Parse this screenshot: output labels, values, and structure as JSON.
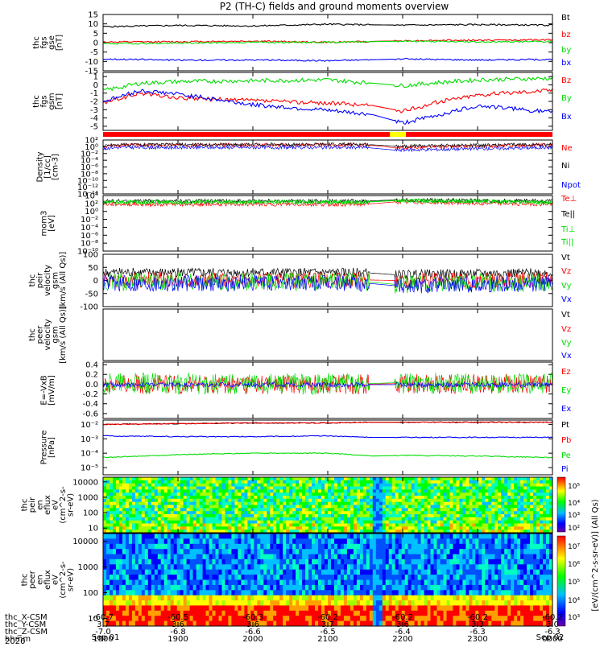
{
  "title": "P2 (TH-C) fields and ground moments overview",
  "time_axis": {
    "rows": [
      {
        "label": "thc_X-CSM",
        "values": [
          "-60.7",
          "-60.5",
          "-60.3",
          "-60.2",
          "-60.2",
          "-60.2",
          "-60.2"
        ]
      },
      {
        "label": "thc_Y-CSM",
        "values": [
          "3.7",
          "3.6",
          "3.6",
          "3.7",
          "3.6",
          "3.3",
          "3.0"
        ]
      },
      {
        "label": "thc_Z-CSM",
        "values": [
          "-7.0",
          "-6.8",
          "-6.6",
          "-6.5",
          "-6.4",
          "-6.3",
          "-6.3"
        ]
      },
      {
        "label": "hhmm",
        "values": [
          "1800",
          "1900",
          "2000",
          "2100",
          "2200",
          "2300",
          "0000"
        ]
      }
    ],
    "year": "2020",
    "date_start": "Sep 01",
    "date_end": "Sep 02"
  },
  "colorbar": {
    "label": "[eV/(cm^2-s-sr-eV)] (All Qs)",
    "upper_ticks": [
      "10⁵",
      "10⁴",
      "10³",
      "10²"
    ],
    "lower_ticks": [
      "10⁷",
      "10⁶",
      "10⁵",
      "10⁴",
      "10³"
    ]
  },
  "chart_data": [
    {
      "type": "line",
      "id": "fgs",
      "ylabel": [
        "thc",
        "fgs",
        "gse",
        "[nT]"
      ],
      "ylim": [
        -15,
        15
      ],
      "ticks": [
        "15",
        "10",
        "5",
        "0",
        "-5",
        "-10",
        "-15"
      ],
      "tick_values": [
        15,
        10,
        5,
        0,
        -5,
        -10,
        -15
      ],
      "x": [
        0,
        1,
        2,
        3,
        4,
        5,
        6
      ],
      "series": [
        {
          "name": "Bt",
          "color": "#000000",
          "values": [
            8.5,
            9.2,
            8.9,
            9.8,
            9.3,
            9.6,
            9.3
          ]
        },
        {
          "name": "bz",
          "color": "#ff0000",
          "values": [
            0.3,
            0.5,
            0.8,
            0.2,
            1.0,
            1.3,
            1.5
          ]
        },
        {
          "name": "by",
          "color": "#00dd00",
          "values": [
            -0.5,
            -0.3,
            0.2,
            0.2,
            0.8,
            0.4,
            0.6
          ]
        },
        {
          "name": "bx",
          "color": "#0000ff",
          "values": [
            -8.7,
            -9.3,
            -9.2,
            -9.6,
            -8.7,
            -9.2,
            -9.0
          ]
        }
      ]
    },
    {
      "type": "line",
      "id": "fgs_gsm",
      "ylabel": [
        "thc",
        "fgs",
        "gsm",
        "[nT]"
      ],
      "ylim": [
        -5.5,
        1.5
      ],
      "ticks": [
        "1",
        "0",
        "-1",
        "-2",
        "-3",
        "-4",
        "-5"
      ],
      "tick_values": [
        1,
        0,
        -1,
        -2,
        -3,
        -4,
        -5
      ],
      "x": [
        0,
        0.5,
        1,
        2,
        3,
        3.6,
        4,
        4.5,
        5,
        6
      ],
      "series": [
        {
          "name": "Bz",
          "color": "#ff0000",
          "values": [
            -2.2,
            -1.0,
            -1.6,
            -1.9,
            -2.2,
            -2.5,
            -3.2,
            -2.0,
            -1.2,
            -0.6
          ]
        },
        {
          "name": "By",
          "color": "#00dd00",
          "values": [
            -0.7,
            0.2,
            0.4,
            0.5,
            0.6,
            0.2,
            -0.1,
            0.3,
            0.6,
            0.8
          ]
        },
        {
          "name": "Bx",
          "color": "#0000ff",
          "values": [
            -2.0,
            -0.7,
            -1.1,
            -2.4,
            -3.1,
            -3.6,
            -4.6,
            -3.6,
            -2.5,
            -3.3
          ]
        }
      ]
    },
    {
      "type": "line",
      "id": "density",
      "ylabel": [
        "Density",
        "[1/cc]",
        "[cm-3]"
      ],
      "ylim": [
        -14,
        2
      ],
      "log": true,
      "ticks": [
        "10²",
        "10⁰",
        "10⁻²",
        "10⁻⁴",
        "10⁻⁶",
        "10⁻⁸",
        "10⁻¹⁰",
        "10⁻¹²",
        "10⁻¹⁴"
      ],
      "tick_values": [
        2,
        0,
        -2,
        -4,
        -6,
        -8,
        -10,
        -12,
        -14
      ],
      "x": [
        0,
        0.1,
        3.5,
        3.9,
        6
      ],
      "series": [
        {
          "name": "Ne",
          "color": "#ff0000",
          "values": [
            -0.5,
            0.5,
            0.6,
            -0.3,
            0.6
          ]
        },
        {
          "name": "Ni",
          "color": "#000000",
          "values": [
            0.1,
            0.6,
            0.7,
            0.2,
            0.7
          ]
        },
        {
          "name": "Npot",
          "color": "#0000ff",
          "values": [
            -0.8,
            -0.2,
            -0.2,
            -1.0,
            -0.2
          ]
        }
      ]
    },
    {
      "type": "line",
      "id": "temperature",
      "ylabel": [
        "mom3",
        "[eV]"
      ],
      "ylim": [
        -10,
        4
      ],
      "log": true,
      "ticks": [
        "10⁴",
        "10²",
        "10⁰",
        "10⁻²",
        "10⁻⁴",
        "10⁻⁶",
        "10⁻⁸",
        "10⁻¹⁰"
      ],
      "tick_values": [
        4,
        2,
        0,
        -2,
        -4,
        -6,
        -8,
        -10
      ],
      "x": [
        0,
        3.5,
        3.9,
        6
      ],
      "series": [
        {
          "name": "Te⊥",
          "color": "#ff0000",
          "values": [
            1.8,
            1.8,
            2.4,
            1.8
          ]
        },
        {
          "name": "Te||",
          "color": "#000000",
          "values": [
            2.6,
            2.6,
            2.9,
            2.6
          ]
        },
        {
          "name": "Ti⊥",
          "color": "#00dd00",
          "values": [
            2.4,
            2.4,
            2.8,
            2.4
          ]
        },
        {
          "name": "Ti||",
          "color": "#00dd00",
          "values": [
            2.3,
            2.3,
            2.7,
            2.3
          ]
        }
      ]
    },
    {
      "type": "line",
      "id": "peir_velocity",
      "ylabel": [
        "thc",
        "peir",
        "velocity",
        "gsm",
        "[km/s (All Qs)]"
      ],
      "ylim": [
        -100,
        100
      ],
      "ticks": [
        "100",
        "50",
        "0",
        "-50",
        "-100"
      ],
      "tick_values": [
        100,
        50,
        0,
        -50,
        -100
      ],
      "x": [
        0,
        3.5,
        3.9,
        6
      ],
      "series": [
        {
          "name": "Vt",
          "color": "#000000",
          "values": [
            30,
            30,
            22,
            30
          ]
        },
        {
          "name": "Vz",
          "color": "#ff0000",
          "values": [
            2,
            2,
            0,
            2
          ]
        },
        {
          "name": "Vy",
          "color": "#00dd00",
          "values": [
            -5,
            -5,
            -15,
            -5
          ]
        },
        {
          "name": "Vx",
          "color": "#0000ff",
          "values": [
            -10,
            -10,
            -20,
            -10
          ]
        }
      ]
    },
    {
      "type": "line",
      "id": "peer_velocity",
      "ylabel": [
        "thc",
        "peer",
        "velocity",
        "gsm",
        "[km/s (All Qs)]"
      ],
      "ylim": [
        0,
        1
      ],
      "ticks": [],
      "tick_values": [],
      "x": [],
      "series": [
        {
          "name": "Vt",
          "color": "#000000",
          "values": []
        },
        {
          "name": "Vz",
          "color": "#ff0000",
          "values": []
        },
        {
          "name": "Vy",
          "color": "#00dd00",
          "values": []
        },
        {
          "name": "Vx",
          "color": "#0000ff",
          "values": []
        }
      ]
    },
    {
      "type": "line",
      "id": "efield",
      "ylabel": [
        "E=-VxB",
        "[mV/m]"
      ],
      "ylim": [
        -0.7,
        0.45
      ],
      "ticks": [
        "0.4",
        "0.2",
        "0.0",
        "-0.2",
        "-0.4",
        "-0.6"
      ],
      "tick_values": [
        0.4,
        0.2,
        0.0,
        -0.2,
        -0.4,
        -0.6
      ],
      "x": [
        0,
        3.5,
        3.9,
        6
      ],
      "series": [
        {
          "name": "Ez",
          "color": "#ff0000",
          "values": [
            0.0,
            0.0,
            0.01,
            0.0
          ]
        },
        {
          "name": "Ey",
          "color": "#00dd00",
          "values": [
            0.01,
            0.01,
            0.03,
            0.01
          ]
        },
        {
          "name": "Ex",
          "color": "#0000ff",
          "values": [
            -0.01,
            -0.01,
            -0.01,
            -0.01
          ]
        }
      ]
    },
    {
      "type": "line",
      "id": "pressure",
      "ylabel": [
        "Pressure",
        "[nPa]"
      ],
      "ylim": [
        -5.5,
        -1.7
      ],
      "log": true,
      "ticks": [
        "10⁻²",
        "10⁻³",
        "10⁻⁴",
        "10⁻⁵"
      ],
      "tick_values": [
        -2,
        -3,
        -4,
        -5
      ],
      "x": [
        0,
        1,
        2,
        3,
        3.6,
        4,
        5,
        6
      ],
      "series": [
        {
          "name": "Pt",
          "color": "#000000",
          "values": [
            -2.0,
            -1.95,
            -1.9,
            -1.9,
            -1.85,
            -1.85,
            -1.85,
            -1.85
          ]
        },
        {
          "name": "Pb",
          "color": "#ff0000",
          "values": [
            -2.0,
            -1.95,
            -1.9,
            -1.9,
            -1.85,
            -1.85,
            -1.85,
            -1.85
          ]
        },
        {
          "name": "Pe",
          "color": "#00dd00",
          "values": [
            -4.3,
            -4.1,
            -4.0,
            -4.0,
            -4.2,
            -4.15,
            -4.2,
            -4.3
          ]
        },
        {
          "name": "Pi",
          "color": "#0000ff",
          "values": [
            -2.8,
            -2.85,
            -2.85,
            -2.8,
            -2.9,
            -2.9,
            -2.9,
            -2.9
          ]
        }
      ]
    },
    {
      "type": "heatmap",
      "id": "peir_en_eflux",
      "ylabel": [
        "thc",
        "peir",
        "en",
        "eflux",
        "eV",
        "(cm^2-s-",
        "sr-eV)"
      ],
      "ylim": [
        5,
        20000
      ],
      "ticks": [
        "10000",
        "1000",
        "100",
        "10"
      ],
      "tick_values": [
        10000,
        1000,
        100,
        10
      ]
    },
    {
      "type": "heatmap",
      "id": "peer_en_eflux",
      "ylabel": [
        "thc",
        "peer",
        "en",
        "eflux",
        "eV",
        "(cm^2-s-",
        "sr-eV)"
      ],
      "ylim": [
        5,
        20000
      ],
      "ticks": [
        "10000",
        "1000",
        "100",
        "10"
      ],
      "tick_values": [
        10000,
        1000,
        100,
        10
      ]
    }
  ]
}
